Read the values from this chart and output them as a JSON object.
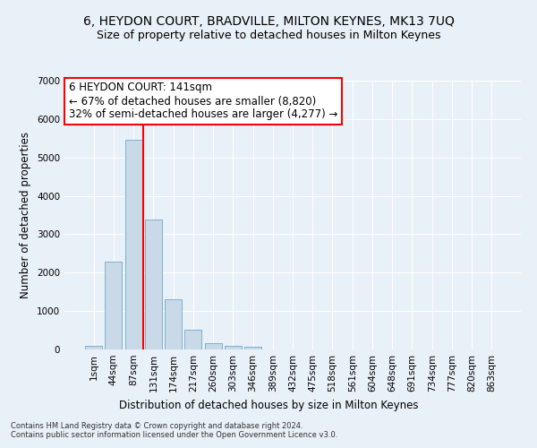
{
  "title": "6, HEYDON COURT, BRADVILLE, MILTON KEYNES, MK13 7UQ",
  "subtitle": "Size of property relative to detached houses in Milton Keynes",
  "xlabel": "Distribution of detached houses by size in Milton Keynes",
  "ylabel": "Number of detached properties",
  "footnote1": "Contains HM Land Registry data © Crown copyright and database right 2024.",
  "footnote2": "Contains public sector information licensed under the Open Government Licence v3.0.",
  "bar_labels": [
    "1sqm",
    "44sqm",
    "87sqm",
    "131sqm",
    "174sqm",
    "217sqm",
    "260sqm",
    "303sqm",
    "346sqm",
    "389sqm",
    "432sqm",
    "475sqm",
    "518sqm",
    "561sqm",
    "604sqm",
    "648sqm",
    "691sqm",
    "734sqm",
    "777sqm",
    "820sqm",
    "863sqm"
  ],
  "bar_values": [
    100,
    2280,
    5460,
    3380,
    1310,
    510,
    175,
    90,
    70,
    0,
    0,
    0,
    0,
    0,
    0,
    0,
    0,
    0,
    0,
    0,
    0
  ],
  "bar_color": "#c9d9e8",
  "bar_edge_color": "#6fa8c8",
  "vline_color": "red",
  "annotation_text": "6 HEYDON COURT: 141sqm\n← 67% of detached houses are smaller (8,820)\n32% of semi-detached houses are larger (4,277) →",
  "annotation_box_color": "white",
  "annotation_box_edge": "red",
  "ylim": [
    0,
    7000
  ],
  "yticks": [
    0,
    1000,
    2000,
    3000,
    4000,
    5000,
    6000,
    7000
  ],
  "bg_color": "#e8f0f8",
  "plot_bg_color": "#e8f0f8",
  "grid_color": "white",
  "title_fontsize": 10,
  "subtitle_fontsize": 9,
  "axis_label_fontsize": 8.5,
  "tick_fontsize": 7.5,
  "annotation_fontsize": 8.5,
  "footnote_fontsize": 6.0
}
